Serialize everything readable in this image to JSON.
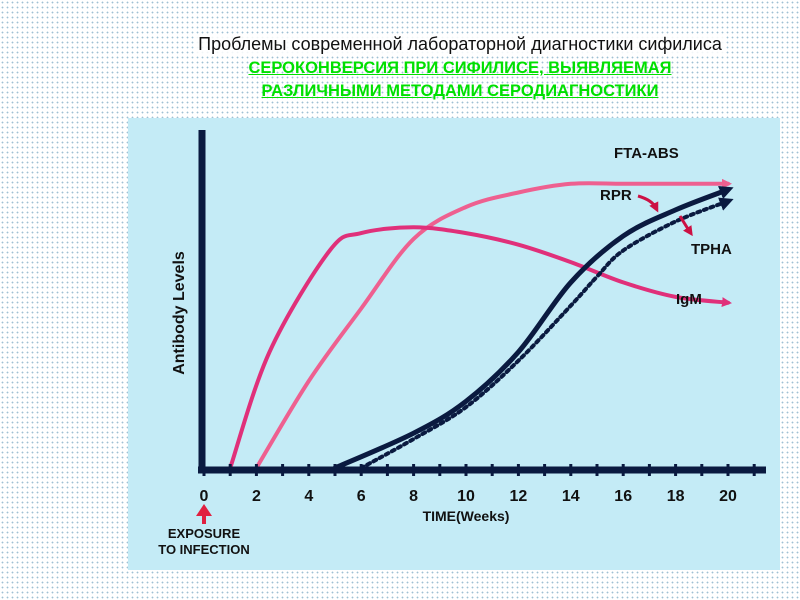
{
  "header": {
    "title": "Проблемы современной лабораторной диагностики сифилиса",
    "subtitle_line1": "СЕРОКОНВЕРСИЯ ПРИ СИФИЛИСЕ, ВЫЯВЛЯЕМАЯ",
    "subtitle_line2": "РАЗЛИЧНЫМИ МЕТОДАМИ СЕРОДИАГНОСТИКИ"
  },
  "chart_data": {
    "type": "line",
    "title": "",
    "xlabel": "TIME(Weeks)",
    "ylabel": "Antibody Levels",
    "xlim": [
      0,
      20
    ],
    "ylim": [
      0,
      100
    ],
    "xticks": [
      0,
      2,
      4,
      6,
      8,
      10,
      12,
      14,
      16,
      18,
      20
    ],
    "annotation": "EXPOSURE TO INFECTION",
    "series": [
      {
        "name": "FTA-ABS",
        "color": "#ee6090",
        "style": "solid",
        "points": [
          [
            2,
            0
          ],
          [
            4,
            30
          ],
          [
            6,
            55
          ],
          [
            8,
            79
          ],
          [
            10,
            90
          ],
          [
            12,
            95
          ],
          [
            14,
            98
          ],
          [
            16,
            98
          ],
          [
            18,
            98
          ],
          [
            20,
            98
          ]
        ]
      },
      {
        "name": "IgM",
        "color": "#e0307a",
        "style": "solid",
        "points": [
          [
            1,
            0
          ],
          [
            2.5,
            40
          ],
          [
            4.8,
            75
          ],
          [
            6,
            81
          ],
          [
            8,
            83
          ],
          [
            10,
            81
          ],
          [
            12,
            77
          ],
          [
            14,
            71
          ],
          [
            16,
            64
          ],
          [
            18,
            59
          ],
          [
            20,
            57
          ]
        ]
      },
      {
        "name": "RPR",
        "color": "#0a1a40",
        "style": "solid",
        "points": [
          [
            5,
            0
          ],
          [
            8,
            12
          ],
          [
            10,
            23
          ],
          [
            12,
            40
          ],
          [
            14,
            64
          ],
          [
            16,
            80
          ],
          [
            18,
            89
          ],
          [
            20,
            96
          ]
        ]
      },
      {
        "name": "TPHA",
        "color": "#0a1a40",
        "style": "dotted",
        "points": [
          [
            6,
            0
          ],
          [
            8,
            10
          ],
          [
            10,
            21
          ],
          [
            12,
            37
          ],
          [
            14,
            56
          ],
          [
            15,
            66
          ],
          [
            16,
            75
          ],
          [
            18,
            85
          ],
          [
            20,
            92
          ]
        ]
      }
    ]
  }
}
